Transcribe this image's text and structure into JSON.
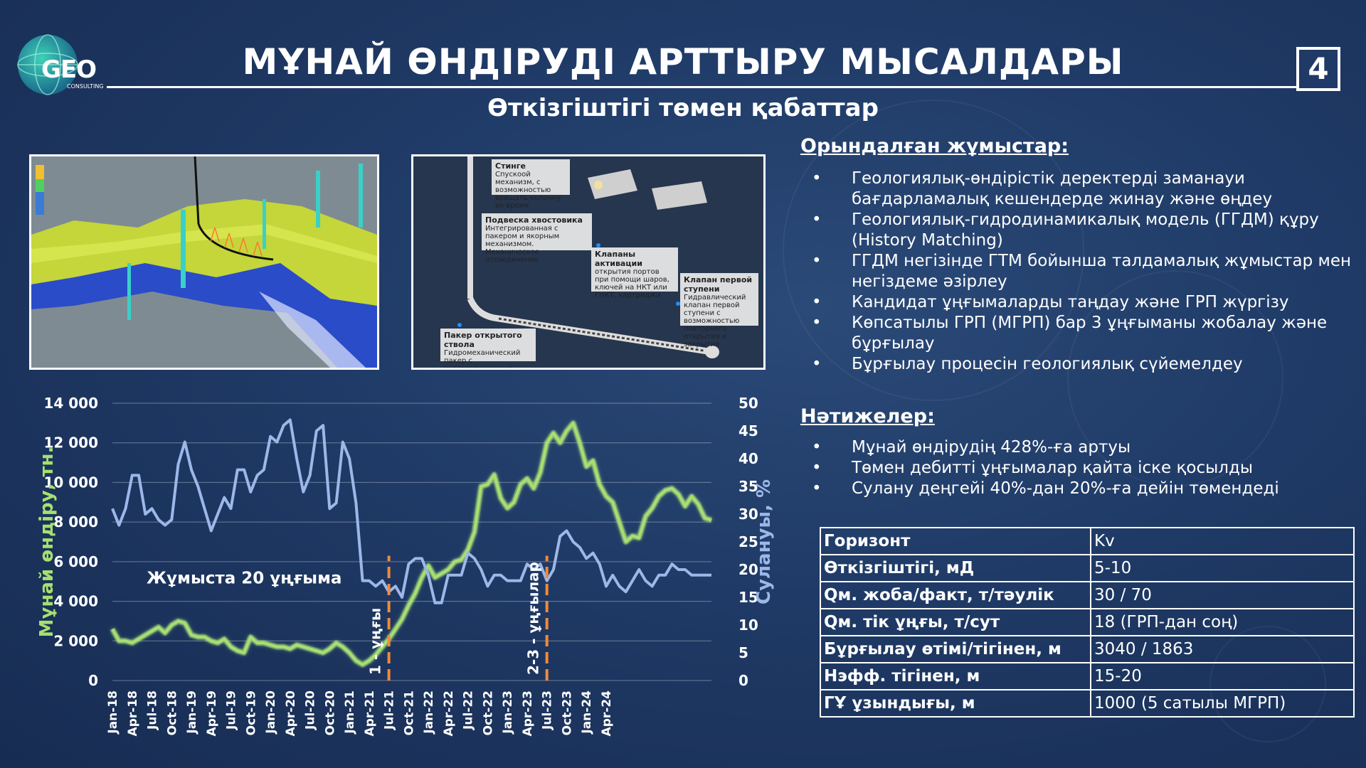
{
  "logo": {
    "main": "GEO",
    "sub": "CONSULTING"
  },
  "title": "МҰНАЙ ӨНДІРУДІ АРТТЫРУ МЫСАЛДАРЫ",
  "page_number": "4",
  "subtitle": "Өткізгіштігі төмен қабаттар",
  "tool_callouts": [
    {
      "title": "Стинге",
      "text": "Спускоой механизм, с возможностью вращать колонну во время"
    },
    {
      "title": "Подвеска хвостовика",
      "text": "Интегрированная с пакером и якорным механизмом. Механическое отсоединение"
    },
    {
      "title": "Клапаны активации",
      "text": "открытия портов при помощи шаров, ключей на НКТ или ГНКТ, картриджи"
    },
    {
      "title": "Клапан первой ступени",
      "text": "Гидравлический клапан первой ступени с возможностью повторного открытия и закрытия"
    },
    {
      "title": "Пакер открытого ствола",
      "text": "Гидромеханический пакер с интегрированным центратором"
    }
  ],
  "works": {
    "heading": "Орындалған жұмыстар:",
    "items": [
      "Геологиялық-өндірістік деректерді заманауи бағдарламалық кешендерде жинау және өңдеу",
      "Геологиялық-гидродинамикалық модель (ГГДМ) құру (History Matching)",
      "ГГДМ негізінде ГТМ бойынша талдамалық жұмыстар мен негіздеме әзірлеу",
      "Кандидат ұңғымаларды таңдау және ГРП жүргізу",
      "Көпсатылы ГРП (МГРП) бар 3 ұңғыманы жобалау және бұрғылау",
      "Бұрғылау процесін геологиялық сүйемелдеу"
    ]
  },
  "results": {
    "heading": "Нәтижелер:",
    "items": [
      "Мұнай өндірудің 428%-ға артуы",
      "Төмен дебитті ұңғымалар қайта іске қосылды",
      "Сулану деңгейі 40%-дан 20%-ға дейін төмендеді"
    ]
  },
  "table": [
    {
      "key": "Горизонт",
      "value": "Kv"
    },
    {
      "key": "Өткізгіштігі, мД",
      "value": "5-10"
    },
    {
      "key": "Qм. жоба/факт, т/тәулік",
      "value": "30 / 70"
    },
    {
      "key": "Qм. тік ұңғы, т/сут",
      "value": "18 (ГРП-дан соң)"
    },
    {
      "key": "Бұрғылау өтімі/тігінен, м",
      "value": "3040 / 1863"
    },
    {
      "key": "Нэфф. тігінен, м",
      "value": "15-20"
    },
    {
      "key": "ГҰ ұзындығы, м",
      "value": "1000 (5 сатылы МГРП)"
    }
  ],
  "chart_data": {
    "type": "line",
    "ylabel": "Мұнай  өндіру, тн.",
    "y2label": "Сулануы, %",
    "ylim": [
      0,
      14000
    ],
    "y2lim": [
      0,
      50
    ],
    "yticks": [
      "0",
      "2 000",
      "4 000",
      "6 000",
      "8 000",
      "10 000",
      "12 000",
      "14 000"
    ],
    "y2ticks": [
      "0",
      "5",
      "10",
      "15",
      "20",
      "25",
      "30",
      "35",
      "40",
      "45",
      "50"
    ],
    "x_tick_labels": [
      "Jan-18",
      "Apr-18",
      "Jul-18",
      "Oct-18",
      "Jan-19",
      "Apr-19",
      "Jul-19",
      "Oct-19",
      "Jan-20",
      "Apr-20",
      "Jul-20",
      "Oct-20",
      "Jan-21",
      "Apr-21",
      "Jul-21",
      "Oct-21",
      "Jan-22",
      "Apr-22",
      "Jul-22",
      "Oct-22",
      "Jan-23",
      "Apr-23",
      "Jul-23",
      "Oct-23",
      "Jan-24",
      "Apr-24"
    ],
    "annotations": {
      "wells_text": "Жұмыста 20 ұңғыма",
      "marker1_label": "1 - ұңғы",
      "marker2_label": "2-3 - ұңғылар",
      "marker1_month_index": 42,
      "marker2_month_index": 66
    },
    "colors": {
      "oil": "#a6e070",
      "watercut": "#9cb7e8",
      "marker": "#f08a3c"
    },
    "series": [
      {
        "axis": "left",
        "color": "#a6e070",
        "values": [
          2600,
          2000,
          2000,
          1900,
          2100,
          2300,
          2500,
          2700,
          2400,
          2800,
          3000,
          2900,
          2300,
          2200,
          2200,
          2000,
          1900,
          2100,
          1700,
          1500,
          1400,
          2200,
          1900,
          1900,
          1800,
          1700,
          1700,
          1600,
          1800,
          1700,
          1600,
          1500,
          1400,
          1600,
          1900,
          1700,
          1400,
          1000,
          800,
          1000,
          1300,
          1700,
          2100,
          2600,
          3100,
          3800,
          4400,
          5200,
          5800,
          5200,
          5400,
          5600,
          6000,
          6100,
          6600,
          7500,
          9800,
          9900,
          10400,
          9200,
          8700,
          9000,
          9900,
          10200,
          9700,
          10500,
          12000,
          12500,
          12000,
          12600,
          13000,
          12000,
          10800,
          11100,
          9900,
          9300,
          9000,
          8000,
          7000,
          7300,
          7200,
          8300,
          8700,
          9300,
          9600,
          9700,
          9400,
          8800,
          9300,
          8900,
          8200,
          8100
        ]
      },
      {
        "axis": "right",
        "values": [
          31,
          28,
          31,
          37,
          37,
          30,
          31,
          29,
          28,
          29,
          39,
          43,
          38,
          35,
          31,
          27,
          30,
          33,
          31,
          38,
          38,
          34,
          37,
          38,
          44,
          43,
          46,
          47,
          40,
          34,
          37,
          45,
          46,
          31,
          32,
          43,
          40,
          32,
          18,
          18,
          17,
          18,
          16,
          17,
          15,
          21,
          22,
          22,
          19,
          14,
          14,
          19,
          19,
          19,
          23,
          22,
          20,
          17,
          19,
          19,
          18,
          18,
          18,
          21,
          20,
          21,
          18,
          20,
          26,
          27,
          25,
          24,
          22,
          23,
          21,
          17,
          19,
          17,
          16,
          18,
          20,
          18,
          17,
          19,
          19,
          21,
          20,
          20,
          19,
          19,
          19,
          19
        ]
      }
    ]
  }
}
